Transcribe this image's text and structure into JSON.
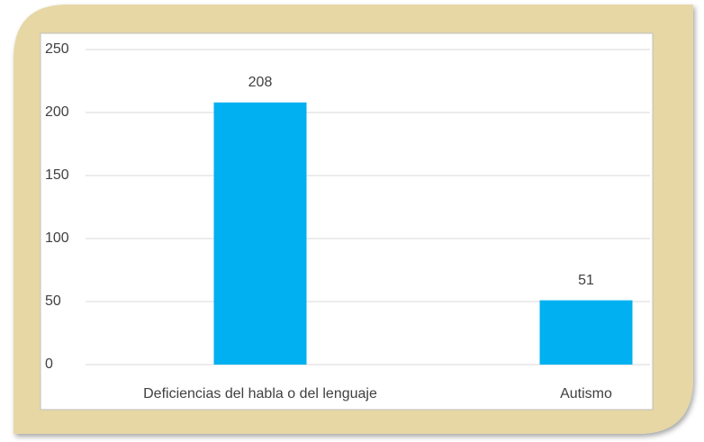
{
  "chart_data": {
    "type": "bar",
    "categories": [
      "Deficiencias del habla o del lenguaje",
      "Autismo"
    ],
    "values": [
      208,
      51
    ],
    "color": "#00b0f0",
    "ylim": [
      0,
      250
    ],
    "yticks": [
      0,
      50,
      100,
      150,
      200,
      250
    ],
    "grid": true
  }
}
